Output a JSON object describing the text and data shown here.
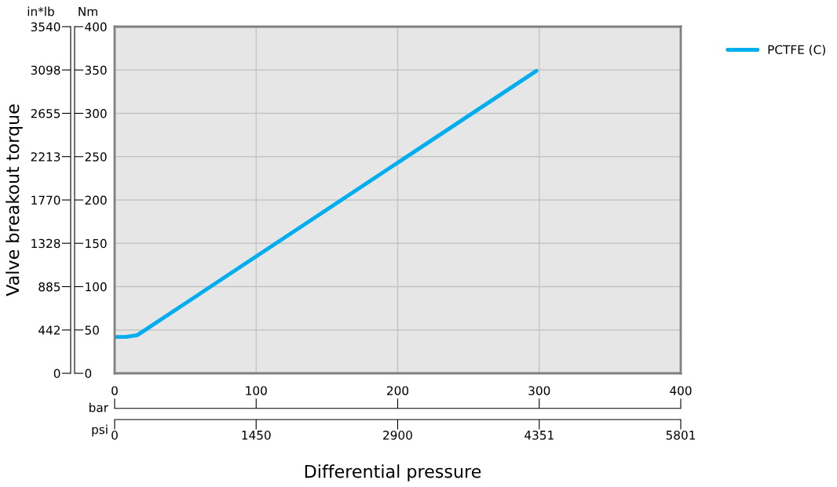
{
  "chart_data": {
    "type": "line",
    "xlabel": "Differential pressure",
    "ylabel": "Valve breakout torque",
    "y2label": "Nm",
    "annotations": [
      "in*lb",
      "bar",
      "psi"
    ],
    "x": [
      0,
      8,
      16,
      298
    ],
    "series": [
      {
        "name": "PCTFE (C)",
        "color": "#00aeef",
        "axis": "y2",
        "values": [
          42,
          42,
          44,
          349
        ]
      }
    ],
    "xlim": [
      0,
      400
    ],
    "xticks": [
      0,
      100,
      200,
      300,
      400
    ],
    "x2lim": [
      0,
      5801
    ],
    "x2ticks": [
      0,
      1450,
      2900,
      4351,
      5801
    ],
    "ylim": [
      0,
      3540
    ],
    "yticks": [
      0,
      442,
      885,
      1328,
      1770,
      2213,
      2655,
      3098,
      3540
    ],
    "y2lim": [
      0,
      400
    ],
    "y2ticks": [
      0,
      50,
      100,
      150,
      200,
      250,
      300,
      350,
      400
    ],
    "grid": true,
    "legend": "top right",
    "marker": "none",
    "line_style": "solid"
  }
}
